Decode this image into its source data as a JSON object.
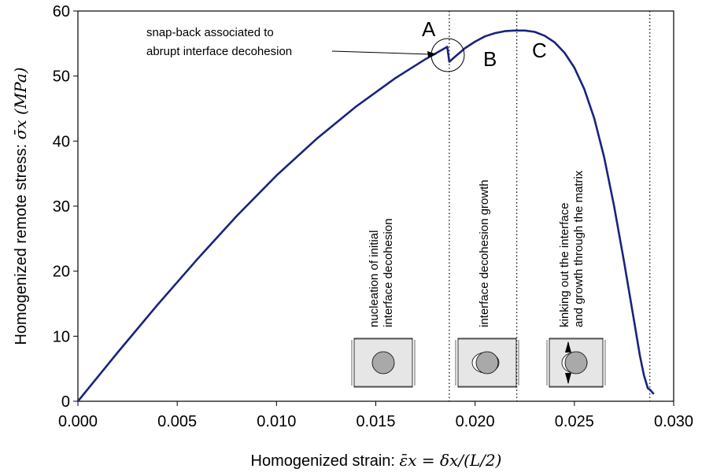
{
  "chart_data": {
    "type": "line",
    "xlabel": "Homogenized strain:",
    "xlabel_math": "ε̄x = δx/(L/2)",
    "ylabel": "Homogenized remote stress:",
    "ylabel_math": "σ̄x (MPa)",
    "xlim": [
      0.0,
      0.03
    ],
    "ylim": [
      0,
      60
    ],
    "xticks": [
      "0.000",
      "0.005",
      "0.010",
      "0.015",
      "0.020",
      "0.025",
      "0.030"
    ],
    "xtick_values": [
      0.0,
      0.005,
      0.01,
      0.015,
      0.02,
      0.025,
      0.03
    ],
    "yticks": [
      "0",
      "10",
      "20",
      "30",
      "40",
      "50",
      "60"
    ],
    "ytick_values": [
      0,
      10,
      20,
      30,
      40,
      50,
      60
    ],
    "grid": false,
    "line_color": "#1a237e",
    "series": [
      {
        "x": [
          0.0,
          0.002,
          0.004,
          0.006,
          0.008,
          0.01,
          0.012,
          0.014,
          0.016,
          0.0175,
          0.0186,
          0.0187,
          0.019,
          0.0195,
          0.02,
          0.0205,
          0.021,
          0.0215,
          0.022,
          0.0225,
          0.023,
          0.0235,
          0.024,
          0.0245,
          0.025,
          0.0255,
          0.026,
          0.0265,
          0.027,
          0.0275,
          0.028,
          0.0283,
          0.0285,
          0.0287,
          0.0288,
          0.029
        ],
        "y": [
          0.0,
          7.5,
          14.8,
          21.8,
          28.5,
          34.7,
          40.3,
          45.3,
          49.7,
          52.6,
          54.5,
          52.2,
          53.0,
          54.3,
          55.3,
          56.1,
          56.6,
          56.9,
          57.0,
          57.0,
          56.8,
          56.2,
          55.2,
          53.6,
          51.3,
          48.0,
          43.5,
          37.5,
          30.0,
          21.5,
          12.5,
          7.0,
          4.0,
          2.0,
          1.8,
          1.1
        ]
      }
    ],
    "vlines": [
      0.0187,
      0.0221,
      0.0288
    ],
    "annotations": {
      "snapback_line1": "snap-back associated to",
      "snapback_line2": "abrupt interface decohesion",
      "label_a": "A",
      "label_b": "B",
      "label_c": "C",
      "phase1_line1": "nucleation of initial",
      "phase1_line2": "interface decohesion",
      "phase2_line1": "interface decohesion growth",
      "phase3_line1": "kinking out the interface",
      "phase3_line2": "and growth through the matrix"
    }
  }
}
